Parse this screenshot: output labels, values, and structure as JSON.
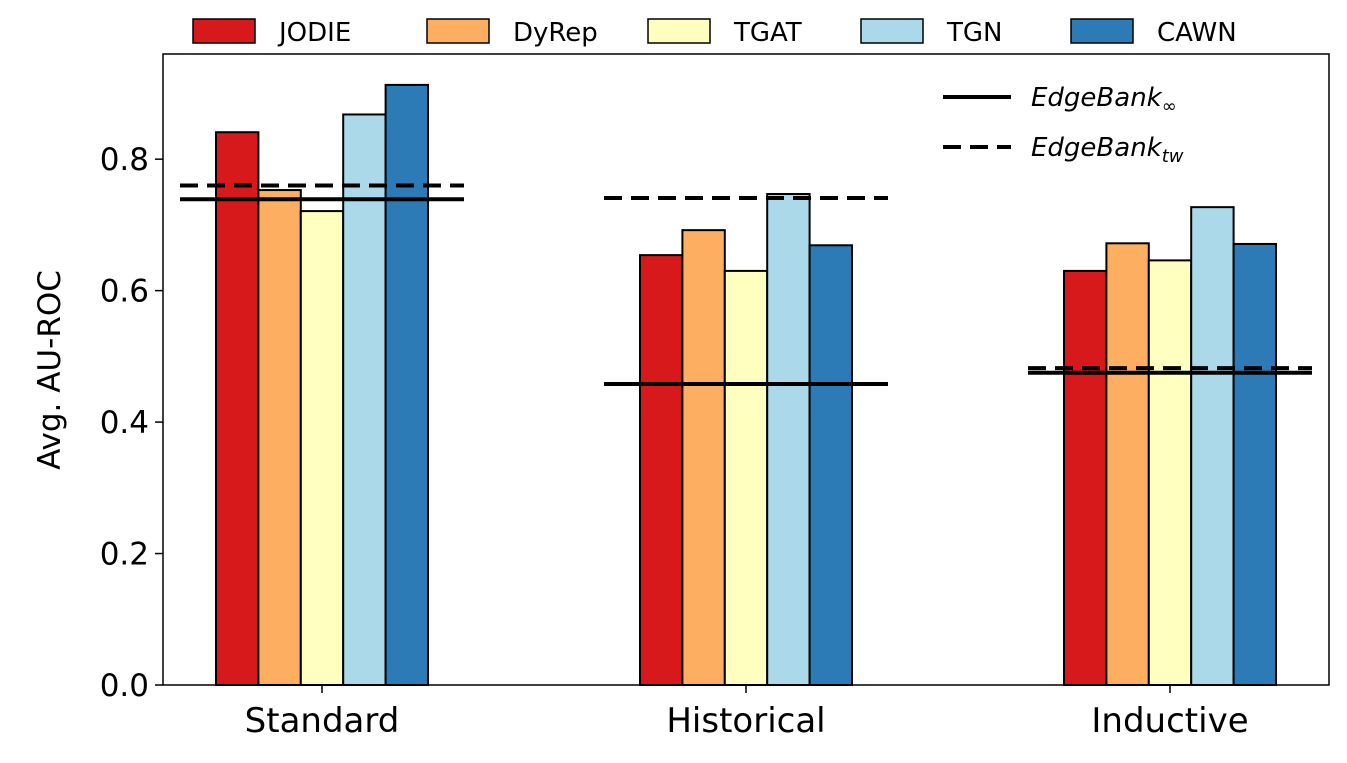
{
  "chart_data": {
    "type": "bar",
    "title": "",
    "xlabel": "",
    "ylabel": "Avg. AU-ROC",
    "ylim": [
      0,
      0.96
    ],
    "yticks": [
      "0.0",
      "0.2",
      "0.4",
      "0.6",
      "0.8"
    ],
    "grid": false,
    "legend_placement": "top-outside",
    "categories": [
      "Standard",
      "Historical",
      "Inductive"
    ],
    "series": [
      {
        "name": "JODIE",
        "color": "#d7191c",
        "values": [
          0.841,
          0.654,
          0.63
        ]
      },
      {
        "name": "DyRep",
        "color": "#fdae61",
        "values": [
          0.753,
          0.692,
          0.672
        ]
      },
      {
        "name": "TGAT",
        "color": "#ffffbf",
        "values": [
          0.721,
          0.63,
          0.646
        ]
      },
      {
        "name": "TGN",
        "color": "#abd9e9",
        "values": [
          0.868,
          0.747,
          0.727
        ]
      },
      {
        "name": "CAWN",
        "color": "#2c7bb6",
        "values": [
          0.913,
          0.669,
          0.671
        ]
      }
    ],
    "reference_lines": [
      {
        "name": "EdgeBank",
        "subscript": "∞",
        "style": "solid",
        "values": [
          0.739,
          0.458,
          0.475
        ]
      },
      {
        "name": "EdgeBank",
        "subscript": "tw",
        "style": "dashed",
        "values": [
          0.76,
          0.741,
          0.482
        ]
      }
    ],
    "reference_legend_placement": "top-right"
  }
}
